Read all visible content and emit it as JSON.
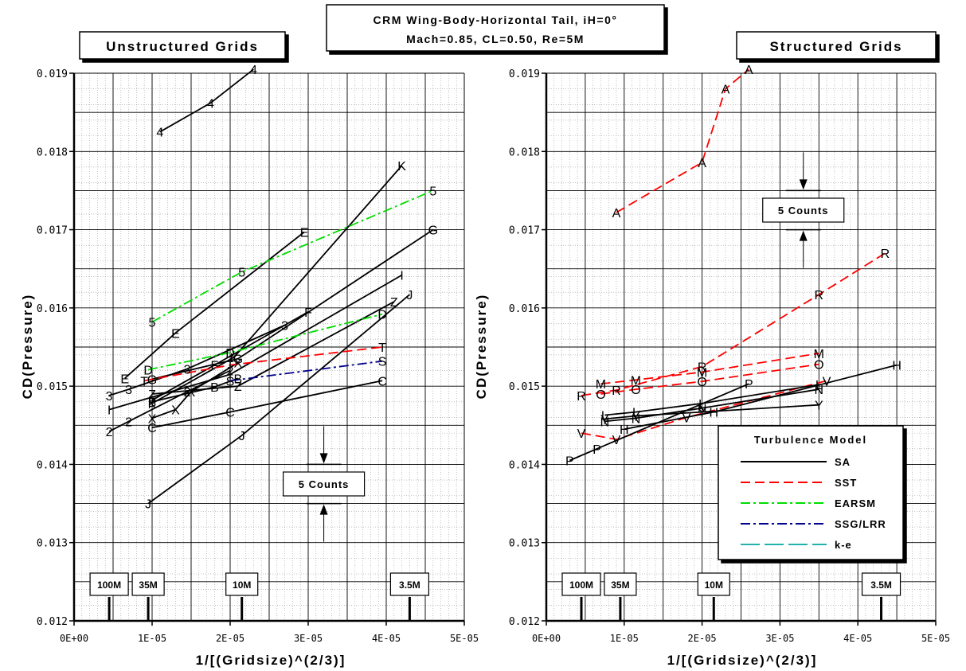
{
  "title_lines": [
    "CRM Wing-Body-Horizontal Tail, iH=0°",
    "Mach=0.85, CL=0.50, Re=5M"
  ],
  "legend": {
    "title": "Turbulence Model",
    "entries": [
      {
        "name": "SA",
        "color": "#000000",
        "dash": "solid"
      },
      {
        "name": "SST",
        "color": "#ff0000",
        "dash": "dash"
      },
      {
        "name": "EARSM",
        "color": "#00dd00",
        "dash": "dashdot"
      },
      {
        "name": "SSG/LRR",
        "color": "#00008b",
        "dash": "dashdot"
      },
      {
        "name": "k-e",
        "color": "#20b2aa",
        "dash": "longdash"
      }
    ]
  },
  "chart_data": [
    {
      "type": "line",
      "panel_title": "Unstructured Grids",
      "xlabel": "1/[(Gridsize)^(2/3)]",
      "ylabel": "CD(Pressure)",
      "xlim": [
        0,
        5e-05
      ],
      "ylim": [
        0.012,
        0.019
      ],
      "x_ticks": [
        "0E+00",
        "1E-05",
        "2E-05",
        "3E-05",
        "4E-05",
        "5E-05"
      ],
      "y_ticks": [
        "0.012",
        "0.013",
        "0.014",
        "0.015",
        "0.016",
        "0.017",
        "0.018",
        "0.019"
      ],
      "grid": true,
      "annotation": {
        "label": "5 Counts",
        "x": 3.2e-05,
        "y_low": 0.0135,
        "y_high": 0.014
      },
      "grid_markers": [
        {
          "label": "100M",
          "x": 4.5e-06
        },
        {
          "label": "35M",
          "x": 9.5e-06
        },
        {
          "label": "10M",
          "x": 2.15e-05
        },
        {
          "label": "3.5M",
          "x": 4.3e-05
        }
      ],
      "series": [
        {
          "marker": "4",
          "model": "SA",
          "points": [
            [
              1.1e-05,
              0.01825
            ],
            [
              1.75e-05,
              0.01862
            ],
            [
              2.3e-05,
              0.01905
            ]
          ]
        },
        {
          "marker": "K",
          "model": "SA",
          "points": [
            [
              1e-05,
              0.01478
            ],
            [
              2.05e-05,
              0.01537
            ],
            [
              4.2e-05,
              0.01782
            ]
          ]
        },
        {
          "marker": "G",
          "model": "SA",
          "points": [
            [
              1e-05,
              0.01509
            ],
            [
              2.1e-05,
              0.01535
            ],
            [
              4.6e-05,
              0.017
            ]
          ]
        },
        {
          "marker": "I",
          "model": "SA",
          "points": [
            [
              4.5e-06,
              0.0147
            ],
            [
              2e-05,
              0.01515
            ],
            [
              4.2e-05,
              0.01642
            ]
          ]
        },
        {
          "marker": "J",
          "model": "SA",
          "points": [
            [
              9.5e-06,
              0.0135
            ],
            [
              2.15e-05,
              0.01437
            ],
            [
              4.3e-05,
              0.01617
            ]
          ]
        },
        {
          "marker": "Z",
          "model": "SA",
          "points": [
            [
              1e-05,
              0.0149
            ],
            [
              2.1e-05,
              0.015
            ],
            [
              4.1e-05,
              0.01608
            ]
          ]
        },
        {
          "marker": "F",
          "model": "SA",
          "points": [
            [
              1e-05,
              0.01482
            ],
            [
              1.8e-05,
              0.01527
            ],
            [
              3e-05,
              0.01595
            ]
          ]
        },
        {
          "marker": "E",
          "model": "SA",
          "points": [
            [
              6.5e-06,
              0.0151
            ],
            [
              1.3e-05,
              0.01568
            ],
            [
              2.95e-05,
              0.01697
            ]
          ]
        },
        {
          "marker": "3",
          "model": "SA",
          "points": [
            [
              4.5e-06,
              0.01488
            ],
            [
              7e-06,
              0.01496
            ],
            [
              1.45e-05,
              0.01522
            ],
            [
              2.7e-05,
              0.01578
            ]
          ]
        },
        {
          "marker": "X",
          "model": "SA",
          "points": [
            [
              1e-05,
              0.01459
            ],
            [
              1.3e-05,
              0.0147
            ],
            [
              1.5e-05,
              0.01493
            ],
            [
              2.1e-05,
              0.0153
            ]
          ]
        },
        {
          "marker": "2",
          "model": "SA",
          "points": [
            [
              4.5e-06,
              0.01442
            ],
            [
              7e-06,
              0.01455
            ],
            [
              1.45e-05,
              0.01493
            ],
            [
              2e-05,
              0.0152
            ]
          ]
        },
        {
          "marker": "B",
          "model": "SA",
          "points": [
            [
              1e-05,
              0.0148
            ],
            [
              1.8e-05,
              0.01499
            ],
            [
              2.1e-05,
              0.0151
            ]
          ]
        },
        {
          "marker": "C",
          "model": "SA",
          "points": [
            [
              1e-05,
              0.01447
            ],
            [
              2e-05,
              0.01467
            ],
            [
              3.95e-05,
              0.01507
            ]
          ]
        },
        {
          "marker": "T",
          "model": "SST",
          "points": [
            [
              9e-06,
              0.01507
            ],
            [
              2e-05,
              0.01527
            ],
            [
              3.95e-05,
              0.0155
            ]
          ]
        },
        {
          "marker": "5",
          "model": "EARSM",
          "points": [
            [
              1e-05,
              0.01582
            ],
            [
              2.15e-05,
              0.01646
            ],
            [
              4.6e-05,
              0.0175
            ]
          ]
        },
        {
          "marker": "D",
          "model": "EARSM",
          "points": [
            [
              9.5e-06,
              0.01521
            ],
            [
              2e-05,
              0.01543
            ],
            [
              3.95e-05,
              0.01592
            ]
          ]
        },
        {
          "marker": "S",
          "model": "SSG/LRR",
          "points": [
            [
              2e-05,
              0.01507
            ],
            [
              3.95e-05,
              0.01532
            ]
          ]
        }
      ]
    },
    {
      "type": "line",
      "panel_title": "Structured Grids",
      "xlabel": "1/[(Gridsize)^(2/3)]",
      "ylabel": "CD(Pressure)",
      "xlim": [
        0,
        5e-05
      ],
      "ylim": [
        0.012,
        0.019
      ],
      "x_ticks": [
        "0E+00",
        "1E-05",
        "2E-05",
        "3E-05",
        "4E-05",
        "5E-05"
      ],
      "y_ticks": [
        "0.012",
        "0.013",
        "0.014",
        "0.015",
        "0.016",
        "0.017",
        "0.018",
        "0.019"
      ],
      "grid": true,
      "annotation": {
        "label": "5 Counts",
        "x": 3.3e-05,
        "y_low": 0.017,
        "y_high": 0.0175
      },
      "grid_markers": [
        {
          "label": "100M",
          "x": 4.5e-06
        },
        {
          "label": "35M",
          "x": 9.5e-06
        },
        {
          "label": "10M",
          "x": 2.15e-05
        },
        {
          "label": "3.5M",
          "x": 4.3e-05
        }
      ],
      "series": [
        {
          "marker": "A",
          "model": "SST",
          "points": [
            [
              9e-06,
              0.01722
            ],
            [
              2e-05,
              0.01786
            ],
            [
              2.3e-05,
              0.0188
            ],
            [
              2.6e-05,
              0.01905
            ]
          ]
        },
        {
          "marker": "R",
          "model": "SST",
          "points": [
            [
              4.5e-06,
              0.01488
            ],
            [
              9e-06,
              0.01495
            ],
            [
              2e-05,
              0.01525
            ],
            [
              3.5e-05,
              0.01617
            ],
            [
              4.35e-05,
              0.0167
            ]
          ]
        },
        {
          "marker": "M",
          "model": "SST",
          "points": [
            [
              7e-06,
              0.01503
            ],
            [
              1.15e-05,
              0.01508
            ],
            [
              2e-05,
              0.01518
            ],
            [
              3.5e-05,
              0.01542
            ]
          ]
        },
        {
          "marker": "O",
          "model": "SST",
          "points": [
            [
              7e-06,
              0.0149
            ],
            [
              1.15e-05,
              0.01496
            ],
            [
              2e-05,
              0.01506
            ],
            [
              3.5e-05,
              0.01528
            ]
          ]
        },
        {
          "marker": "V",
          "model": "SST",
          "points": [
            [
              4.5e-06,
              0.0144
            ],
            [
              9e-06,
              0.01432
            ],
            [
              1.8e-05,
              0.0146
            ],
            [
              3.6e-05,
              0.01507
            ]
          ]
        },
        {
          "marker": "H",
          "model": "SA",
          "points": [
            [
              1e-05,
              0.01445
            ],
            [
              2.15e-05,
              0.01467
            ],
            [
              4.5e-05,
              0.01527
            ]
          ]
        },
        {
          "marker": "P",
          "model": "SA",
          "points": [
            [
              3e-06,
              0.01405
            ],
            [
              6.5e-06,
              0.0142
            ],
            [
              2.6e-05,
              0.01503
            ]
          ]
        },
        {
          "marker": "L",
          "model": "SA",
          "points": [
            [
              7.5e-06,
              0.01463
            ],
            [
              1.15e-05,
              0.01467
            ],
            [
              2e-05,
              0.01478
            ],
            [
              3.5e-05,
              0.01502
            ]
          ]
        },
        {
          "marker": "N",
          "model": "SA",
          "points": [
            [
              7.5e-06,
              0.01455
            ],
            [
              1.15e-05,
              0.01459
            ],
            [
              2e-05,
              0.01472
            ],
            [
              3.5e-05,
              0.01496
            ]
          ]
        },
        {
          "marker": "Y",
          "model": "SA",
          "points": [
            [
              7.5e-06,
              0.01458
            ],
            [
              1.15e-05,
              0.01462
            ],
            [
              2e-05,
              0.01467
            ],
            [
              3.5e-05,
              0.01476
            ]
          ]
        }
      ]
    }
  ]
}
